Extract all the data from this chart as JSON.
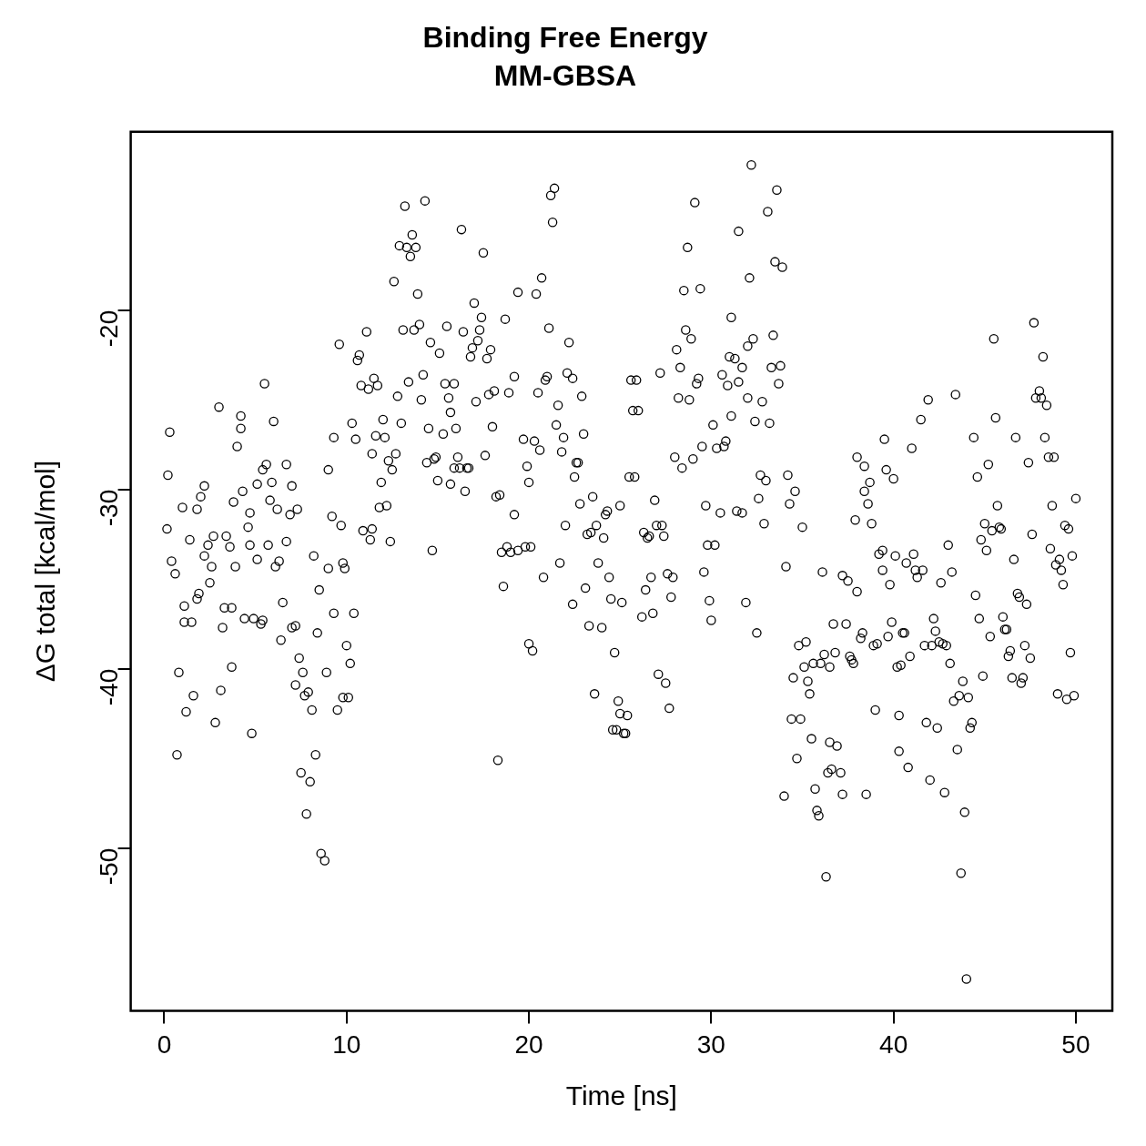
{
  "chart_data": {
    "type": "scatter",
    "title": "Binding Free Energy",
    "subtitle": "MM-GBSA",
    "xlabel": "Time [ns]",
    "ylabel": "ΔG total [kcal/mol]",
    "xlim": [
      -1.84,
      52.0
    ],
    "ylim": [
      -59.07,
      -10.05
    ],
    "xticks": [
      0,
      10,
      20,
      30,
      40,
      50
    ],
    "yticks": [
      -50,
      -40,
      -30,
      -20
    ],
    "grid": false,
    "legend": false,
    "marker": "circle",
    "series": [
      {
        "color": "#000000",
        "x": [
          0.15,
          0.2,
          0.3,
          0.4,
          0.6,
          0.7,
          0.8,
          1.0,
          1.1,
          1.1,
          1.2,
          1.4,
          1.5,
          1.6,
          1.8,
          1.8,
          1.9,
          2.0,
          2.2,
          2.2,
          2.4,
          2.5,
          2.6,
          2.7,
          2.8,
          3.0,
          3.1,
          3.2,
          3.3,
          3.4,
          3.6,
          3.7,
          3.7,
          3.8,
          3.9,
          4.0,
          4.2,
          4.2,
          4.3,
          4.4,
          4.6,
          4.7,
          4.7,
          4.8,
          4.9,
          5.1,
          5.1,
          5.3,
          5.4,
          5.4,
          5.5,
          5.6,
          5.7,
          5.8,
          5.9,
          6.0,
          6.1,
          6.2,
          6.3,
          6.4,
          6.5,
          6.7,
          6.7,
          6.9,
          7.0,
          7.0,
          7.2,
          7.2,
          7.3,
          7.4,
          7.5,
          7.6,
          7.7,
          7.8,
          7.9,
          8.0,
          8.1,
          8.2,
          8.3,
          8.4,
          8.5,
          8.6,
          8.8,
          8.9,
          9.0,
          9.0,
          9.2,
          9.3,
          9.3,
          9.5,
          9.6,
          9.7,
          9.8,
          9.8,
          9.9,
          10.0,
          10.1,
          10.2,
          10.3,
          10.4,
          10.5,
          10.6,
          10.7,
          10.8,
          10.9,
          11.1,
          11.2,
          11.3,
          11.4,
          11.4,
          11.5,
          11.6,
          11.7,
          11.8,
          11.9,
          12.0,
          12.1,
          12.2,
          12.3,
          12.4,
          12.5,
          12.6,
          12.7,
          12.8,
          12.9,
          13.0,
          13.1,
          13.2,
          13.3,
          13.4,
          13.5,
          13.6,
          13.7,
          13.8,
          13.9,
          14.0,
          14.1,
          14.2,
          14.3,
          14.4,
          14.5,
          14.6,
          14.7,
          14.8,
          14.9,
          15.0,
          15.1,
          15.3,
          15.4,
          15.5,
          15.6,
          15.7,
          15.7,
          15.9,
          15.9,
          16.0,
          16.1,
          16.2,
          16.3,
          16.4,
          16.5,
          16.6,
          16.7,
          16.8,
          16.9,
          17.0,
          17.1,
          17.2,
          17.3,
          17.4,
          17.5,
          17.6,
          17.7,
          17.8,
          17.9,
          18.0,
          18.1,
          18.2,
          18.3,
          18.4,
          18.5,
          18.6,
          18.7,
          18.8,
          18.9,
          19.0,
          19.2,
          19.2,
          19.4,
          19.4,
          19.7,
          19.8,
          19.9,
          20.0,
          20.1,
          20.0,
          20.2,
          20.3,
          20.4,
          20.5,
          20.6,
          20.7,
          20.8,
          20.9,
          21.0,
          21.1,
          21.2,
          21.3,
          21.4,
          21.5,
          21.6,
          21.7,
          21.8,
          21.9,
          22.0,
          22.1,
          22.2,
          22.4,
          22.4,
          22.5,
          22.6,
          22.7,
          22.8,
          22.9,
          23.0,
          23.1,
          23.2,
          23.3,
          23.4,
          23.5,
          23.6,
          23.7,
          23.8,
          24.0,
          24.1,
          24.2,
          24.3,
          24.4,
          24.5,
          24.6,
          24.7,
          24.8,
          24.9,
          25.0,
          25.0,
          25.1,
          25.2,
          25.3,
          25.4,
          25.5,
          25.6,
          25.7,
          25.8,
          25.9,
          26.0,
          26.2,
          26.3,
          26.4,
          26.5,
          26.6,
          26.7,
          26.8,
          26.9,
          27.0,
          27.1,
          27.2,
          27.3,
          27.4,
          27.5,
          27.6,
          27.7,
          27.8,
          27.9,
          28.0,
          28.1,
          28.2,
          28.3,
          28.4,
          28.5,
          28.6,
          28.7,
          28.8,
          28.9,
          29.0,
          29.1,
          29.2,
          29.3,
          29.4,
          29.5,
          29.6,
          29.7,
          29.8,
          29.9,
          30.0,
          30.1,
          30.2,
          30.3,
          30.5,
          30.6,
          30.7,
          30.8,
          30.9,
          31.0,
          31.1,
          31.1,
          31.3,
          31.4,
          31.5,
          31.5,
          31.7,
          31.7,
          31.9,
          32.0,
          32.0,
          32.1,
          32.2,
          32.3,
          32.4,
          32.5,
          32.6,
          32.7,
          32.8,
          32.9,
          33.0,
          33.1,
          33.2,
          33.3,
          33.4,
          33.5,
          33.6,
          33.7,
          33.8,
          33.9,
          34.0,
          34.1,
          34.2,
          34.3,
          34.4,
          34.5,
          34.6,
          34.7,
          34.8,
          34.9,
          35.0,
          35.1,
          35.2,
          35.3,
          35.4,
          35.5,
          35.6,
          35.7,
          35.8,
          35.9,
          36.0,
          36.1,
          36.2,
          36.3,
          36.4,
          36.5,
          36.5,
          36.6,
          36.7,
          36.8,
          36.9,
          37.1,
          37.2,
          37.2,
          37.4,
          37.5,
          37.6,
          37.7,
          37.8,
          37.9,
          38.0,
          38.0,
          38.2,
          38.3,
          38.4,
          38.4,
          38.5,
          38.6,
          38.7,
          38.8,
          38.9,
          39.0,
          39.1,
          39.2,
          39.4,
          39.4,
          39.5,
          39.6,
          39.7,
          39.8,
          39.9,
          40.0,
          40.1,
          40.2,
          40.3,
          40.3,
          40.4,
          40.5,
          40.6,
          40.7,
          40.8,
          40.9,
          41.0,
          41.1,
          41.2,
          41.3,
          41.5,
          41.6,
          41.7,
          41.8,
          41.9,
          42.0,
          42.1,
          42.2,
          42.3,
          42.4,
          42.5,
          42.6,
          42.7,
          42.8,
          42.9,
          43.0,
          43.1,
          43.2,
          43.3,
          43.4,
          43.5,
          43.6,
          43.7,
          43.8,
          43.9,
          44.0,
          44.1,
          44.2,
          44.3,
          44.4,
          44.5,
          44.6,
          44.7,
          44.8,
          44.9,
          45.0,
          45.1,
          45.2,
          45.3,
          45.4,
          45.5,
          45.6,
          45.7,
          45.8,
          45.9,
          46.0,
          46.1,
          46.2,
          46.3,
          46.4,
          46.5,
          46.6,
          46.7,
          46.8,
          46.9,
          47.0,
          47.1,
          47.2,
          47.3,
          47.4,
          47.5,
          47.6,
          47.7,
          47.8,
          48.0,
          48.1,
          48.2,
          48.3,
          48.4,
          48.5,
          48.6,
          48.7,
          48.8,
          48.9,
          49.0,
          49.1,
          49.2,
          49.3,
          49.4,
          49.5,
          49.6,
          49.7,
          49.8,
          49.9,
          50.0
        ],
        "values": [
          -32.2,
          -29.2,
          -26.8,
          -34.0,
          -34.7,
          -44.8,
          -40.2,
          -31.0,
          -36.5,
          -37.4,
          -42.4,
          -32.8,
          -37.4,
          -41.5,
          -31.1,
          -36.1,
          -35.8,
          -30.4,
          -29.8,
          -33.7,
          -33.1,
          -35.2,
          -34.3,
          -32.6,
          -43.0,
          -25.4,
          -41.2,
          -37.7,
          -36.6,
          -32.6,
          -33.2,
          -36.6,
          -39.9,
          -30.7,
          -34.3,
          -27.6,
          -25.9,
          -26.6,
          -30.1,
          -37.2,
          -32.1,
          -33.1,
          -31.3,
          -43.6,
          -37.2,
          -29.7,
          -33.9,
          -37.5,
          -37.3,
          -28.9,
          -24.1,
          -28.6,
          -33.1,
          -30.6,
          -29.6,
          -26.2,
          -34.3,
          -31.1,
          -34.0,
          -38.4,
          -36.3,
          -28.6,
          -32.9,
          -31.4,
          -29.8,
          -37.7,
          -37.6,
          -40.9,
          -31.1,
          -39.4,
          -45.8,
          -40.2,
          -41.5,
          -48.1,
          -41.3,
          -46.3,
          -42.3,
          -33.7,
          -44.8,
          -38.0,
          -35.6,
          -50.3,
          -50.7,
          -40.2,
          -34.4,
          -28.9,
          -31.5,
          -36.9,
          -27.1,
          -42.3,
          -21.9,
          -32.0,
          -41.6,
          -34.1,
          -34.4,
          -38.7,
          -41.6,
          -39.7,
          -26.3,
          -36.9,
          -27.2,
          -22.8,
          -22.5,
          -24.2,
          -32.3,
          -21.2,
          -24.4,
          -32.8,
          -32.2,
          -28.0,
          -23.8,
          -27.0,
          -24.2,
          -31.0,
          -29.6,
          -26.1,
          -27.1,
          -30.9,
          -28.4,
          -32.9,
          -28.9,
          -18.4,
          -28.0,
          -24.8,
          -16.4,
          -26.3,
          -21.1,
          -14.2,
          -16.5,
          -24.0,
          -17.0,
          -15.8,
          -21.1,
          -16.5,
          -19.1,
          -20.8,
          -25.0,
          -23.6,
          -13.9,
          -28.5,
          -26.6,
          -21.8,
          -33.4,
          -28.3,
          -28.2,
          -29.5,
          -22.4,
          -26.9,
          -24.1,
          -20.9,
          -24.9,
          -29.7,
          -25.7,
          -24.1,
          -28.8,
          -26.6,
          -28.2,
          -28.8,
          -15.5,
          -21.2,
          -30.1,
          -28.8,
          -28.8,
          -22.6,
          -22.1,
          -19.6,
          -25.1,
          -21.7,
          -21.1,
          -20.4,
          -16.8,
          -28.1,
          -22.7,
          -24.7,
          -22.2,
          -26.5,
          -24.5,
          -30.4,
          -45.1,
          -30.3,
          -33.5,
          -35.4,
          -20.5,
          -33.2,
          -24.6,
          -33.5,
          -23.7,
          -31.4,
          -33.4,
          -19.0,
          -27.2,
          -33.2,
          -28.7,
          -29.6,
          -33.2,
          -38.6,
          -39.0,
          -27.3,
          -19.1,
          -24.6,
          -27.8,
          -18.2,
          -34.9,
          -23.9,
          -23.7,
          -21.0,
          -13.6,
          -15.1,
          -13.2,
          -26.4,
          -25.3,
          -34.1,
          -27.9,
          -27.1,
          -32.0,
          -23.5,
          -21.8,
          -23.8,
          -36.4,
          -29.3,
          -28.5,
          -28.5,
          -30.8,
          -24.8,
          -26.9,
          -35.5,
          -32.5,
          -37.6,
          -32.4,
          -30.4,
          -41.4,
          -32.0,
          -34.1,
          -37.7,
          -32.7,
          -31.4,
          -31.2,
          -34.9,
          -36.1,
          -43.4,
          -39.1,
          -43.4,
          -41.8,
          -42.5,
          -30.9,
          -36.3,
          -43.6,
          -43.6,
          -42.6,
          -29.3,
          -23.9,
          -25.6,
          -29.3,
          -23.9,
          -25.6,
          -37.1,
          -32.4,
          -35.6,
          -32.7,
          -32.6,
          -34.9,
          -36.9,
          -30.6,
          -32.0,
          -40.3,
          -23.5,
          -32.0,
          -32.6,
          -40.8,
          -34.7,
          -42.2,
          -36.0,
          -34.9,
          -28.2,
          -22.2,
          -24.9,
          -23.2,
          -28.8,
          -18.9,
          -21.1,
          -16.5,
          -25.0,
          -21.6,
          -28.3,
          -14.0,
          -24.1,
          -23.8,
          -18.8,
          -27.6,
          -34.6,
          -30.9,
          -33.1,
          -36.2,
          -37.3,
          -26.4,
          -33.1,
          -27.7,
          -31.3,
          -23.6,
          -27.6,
          -27.3,
          -24.2,
          -22.6,
          -25.9,
          -20.4,
          -22.7,
          -31.2,
          -24.0,
          -15.6,
          -23.2,
          -31.3,
          -36.3,
          -22.0,
          -24.9,
          -18.2,
          -11.9,
          -21.6,
          -26.2,
          -38.0,
          -30.5,
          -29.2,
          -25.1,
          -31.9,
          -29.5,
          -14.5,
          -26.3,
          -23.2,
          -21.4,
          -17.3,
          -13.3,
          -24.1,
          -23.1,
          -17.6,
          -47.1,
          -34.3,
          -29.2,
          -30.8,
          -42.8,
          -40.5,
          -30.1,
          -45.0,
          -38.7,
          -42.8,
          -32.1,
          -39.9,
          -38.5,
          -40.7,
          -41.4,
          -43.9,
          -39.7,
          -46.7,
          -47.9,
          -48.2,
          -39.7,
          -34.6,
          -39.2,
          -51.6,
          -45.8,
          -44.1,
          -39.9,
          -45.6,
          -37.5,
          -39.1,
          -44.3,
          -45.8,
          -34.8,
          -47.0,
          -37.5,
          -35.1,
          -39.3,
          -39.5,
          -39.7,
          -31.7,
          -35.7,
          -28.2,
          -38.3,
          -38.0,
          -30.1,
          -28.7,
          -47.0,
          -30.8,
          -29.6,
          -31.9,
          -38.7,
          -42.3,
          -38.6,
          -33.6,
          -33.4,
          -34.5,
          -27.2,
          -28.9,
          -38.2,
          -35.3,
          -37.4,
          -29.4,
          -33.7,
          -39.9,
          -42.6,
          -44.6,
          -39.8,
          -38.0,
          -38.0,
          -34.1,
          -45.5,
          -39.3,
          -27.7,
          -33.6,
          -34.5,
          -34.9,
          -26.1,
          -34.5,
          -38.7,
          -43.0,
          -25.0,
          -46.2,
          -38.7,
          -37.2,
          -37.9,
          -43.3,
          -38.5,
          -35.2,
          -38.6,
          -46.9,
          -38.7,
          -33.1,
          -39.7,
          -34.6,
          -41.8,
          -24.7,
          -44.5,
          -41.5,
          -51.4,
          -40.7,
          -48.0,
          -57.3,
          -41.6,
          -43.3,
          -43.0,
          -27.1,
          -35.9,
          -29.3,
          -37.2,
          -32.8,
          -40.4,
          -31.9,
          -33.4,
          -28.6,
          -38.2,
          -32.3,
          -21.6,
          -26.0,
          -30.9,
          -32.1,
          -32.2,
          -37.1,
          -37.8,
          -37.8,
          -39.3,
          -39.0,
          -40.5,
          -33.9,
          -27.1,
          -35.8,
          -36.0,
          -40.8,
          -40.5,
          -38.7,
          -36.4,
          -28.5,
          -39.4,
          -32.5,
          -20.7,
          -24.9,
          -24.5,
          -24.9,
          -22.6,
          -27.1,
          -25.3,
          -28.2,
          -33.3,
          -30.9,
          -28.2,
          -34.2,
          -41.4,
          -33.9,
          -34.5,
          -35.3,
          -32.0,
          -41.7,
          -32.2,
          -39.1,
          -33.7,
          -41.5,
          -30.5
        ]
      }
    ]
  }
}
